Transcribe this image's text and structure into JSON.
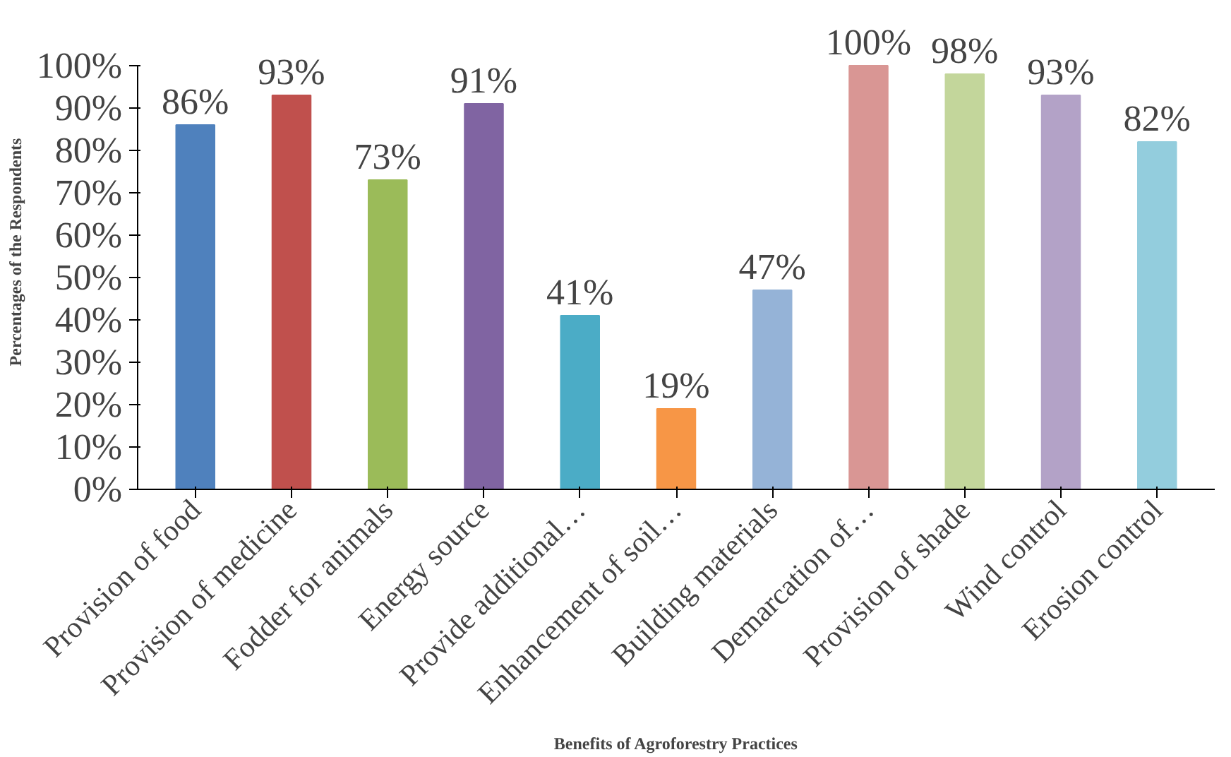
{
  "chart_data": {
    "type": "bar",
    "xlabel": "Benefits of Agroforestry Practices",
    "ylabel": "Percentages of the Respondents",
    "categories": [
      "Provision of food",
      "Provision of medicine",
      "Fodder for animals",
      "Energy source",
      "Provide additional…",
      "Enhancement of soil…",
      "Building materials",
      "Demarcation of…",
      "Provision of shade",
      "Wind control",
      "Erosion control"
    ],
    "values": [
      86,
      93,
      73,
      91,
      41,
      19,
      47,
      100,
      98,
      93,
      82
    ],
    "colors": [
      "#4f81bd",
      "#c0504d",
      "#9bbb59",
      "#8064a2",
      "#4bacc6",
      "#f79646",
      "#95b3d7",
      "#d99694",
      "#c3d69b",
      "#b3a2c7",
      "#93cddd"
    ],
    "value_labels": [
      "86%",
      "93%",
      "73%",
      "91%",
      "41%",
      "19%",
      "47%",
      "100%",
      "98%",
      "93%",
      "82%"
    ],
    "ylim": [
      0,
      100
    ],
    "yticks": [
      {
        "value": 0,
        "label": "0%"
      },
      {
        "value": 10,
        "label": "10%"
      },
      {
        "value": 20,
        "label": "20%"
      },
      {
        "value": 30,
        "label": "30%"
      },
      {
        "value": 40,
        "label": "40%"
      },
      {
        "value": 50,
        "label": "50%"
      },
      {
        "value": 60,
        "label": "60%"
      },
      {
        "value": 70,
        "label": "70%"
      },
      {
        "value": 80,
        "label": "80%"
      },
      {
        "value": 90,
        "label": "90%"
      },
      {
        "value": 100,
        "label": "100%"
      }
    ],
    "grid": false,
    "legend": false
  }
}
